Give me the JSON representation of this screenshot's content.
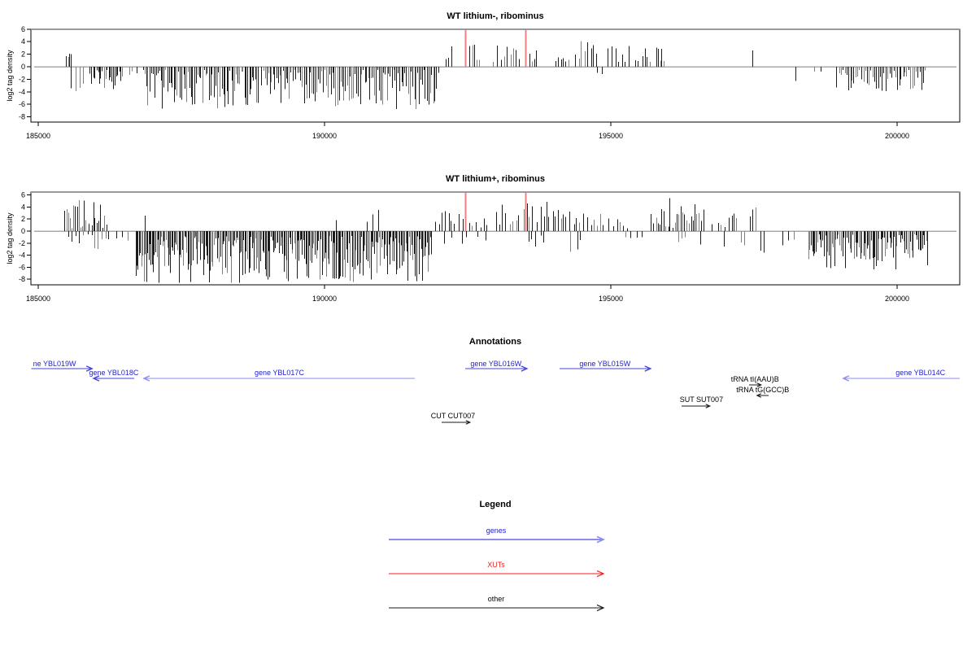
{
  "figure": {
    "background": "#ffffff"
  },
  "colors": {
    "spike_black": "#1c1c1c",
    "spike_gray": "#7f7f7f",
    "xut_red": "#f08080",
    "zero_line": "#aaaaaa",
    "top_line": "#999999",
    "box": "#000000",
    "gene_blue_label": "#2222cc",
    "gene_blue_shaft_dark": "#4646d8",
    "gene_blue_shaft_light": "#8c8cf0",
    "legend_red": "#ee2222",
    "legend_black": "#1a1a1a"
  },
  "seed": 11,
  "chart_data": [
    {
      "type": "bar",
      "id": "panel-top",
      "title": "WT lithium-, ribominus",
      "ylabel": "log2 tag density",
      "xlim": [
        184872,
        201093
      ],
      "ylim": [
        -8.8,
        6
      ],
      "x_ticks": [
        185000,
        190000,
        195000,
        200000
      ],
      "x_tick_labels": [
        "185000",
        "190000",
        "195000",
        "200000"
      ],
      "y_ticks": [
        6,
        4,
        2,
        0,
        -2,
        -4,
        -6,
        -8
      ],
      "grid": false,
      "xut_marks": [
        {
          "x": 192457,
          "h": 6
        },
        {
          "x": 193509,
          "h": 6
        }
      ],
      "regions_up": [
        {
          "x0": 185483,
          "x1": 185568,
          "n": 4,
          "hmin": 1.4,
          "hmax": 2.7
        },
        {
          "x0": 192114,
          "x1": 192228,
          "n": 3,
          "hmin": 1.2,
          "hmax": 3.7
        },
        {
          "x0": 192497,
          "x1": 192725,
          "n": 5,
          "hmin": 0.8,
          "hmax": 3.5
        },
        {
          "x0": 192923,
          "x1": 193434,
          "n": 9,
          "hmin": 0.8,
          "hmax": 3.5
        },
        {
          "x0": 193562,
          "x1": 193719,
          "n": 4,
          "hmin": 0.8,
          "hmax": 3.0
        },
        {
          "x0": 193988,
          "x1": 194287,
          "n": 6,
          "hmin": 0.8,
          "hmax": 3.0
        },
        {
          "x0": 194344,
          "x1": 194784,
          "n": 8,
          "hmin": 1.0,
          "hmax": 4.3
        },
        {
          "x0": 194912,
          "x1": 195352,
          "n": 7,
          "hmin": 0.8,
          "hmax": 3.5
        },
        {
          "x0": 195409,
          "x1": 195707,
          "n": 6,
          "hmin": 0.8,
          "hmax": 3.8
        },
        {
          "x0": 195764,
          "x1": 195948,
          "n": 5,
          "hmin": 0.8,
          "hmax": 3.4
        },
        {
          "x0": 197467,
          "x1": 197496,
          "n": 1,
          "hmin": 2.6,
          "hmax": 2.6
        }
      ],
      "regions_down": [
        {
          "x0": 185539,
          "x1": 185838,
          "n": 4,
          "hmin": 1.0,
          "hmax": 4.0
        },
        {
          "x0": 185894,
          "x1": 186477,
          "n": 22,
          "hmin": 0.5,
          "hmax": 3.6
        },
        {
          "x0": 186533,
          "x1": 186761,
          "n": 3,
          "hmin": 0.5,
          "hmax": 2.0
        },
        {
          "x0": 186817,
          "x1": 192000,
          "n": 185,
          "hmin": 0.5,
          "hmax": 6.8
        },
        {
          "x0": 194741,
          "x1": 194897,
          "n": 2,
          "hmin": 0.5,
          "hmax": 1.3
        },
        {
          "x0": 198192,
          "x1": 198234,
          "n": 1,
          "hmin": 2.3,
          "hmax": 2.3
        },
        {
          "x0": 198532,
          "x1": 198731,
          "n": 2,
          "hmin": 0.6,
          "hmax": 1.1
        },
        {
          "x0": 198930,
          "x1": 200506,
          "n": 48,
          "hmin": 0.5,
          "hmax": 4.6
        }
      ]
    },
    {
      "type": "bar",
      "id": "panel-bottom",
      "title": "WT lithium+, ribominus",
      "ylabel": "log2 tag density",
      "xlim": [
        184872,
        201093
      ],
      "ylim": [
        -8.9,
        6.5
      ],
      "x_ticks": [
        185000,
        190000,
        195000,
        200000
      ],
      "x_tick_labels": [
        "185000",
        "190000",
        "195000",
        "200000"
      ],
      "y_ticks": [
        6,
        4,
        2,
        0,
        -2,
        -4,
        -6,
        -8
      ],
      "grid": false,
      "xut_marks": [
        {
          "x": 192457,
          "h": 6.4
        },
        {
          "x": 193509,
          "h": 6.4
        }
      ],
      "regions_up": [
        {
          "x0": 185440,
          "x1": 186193,
          "n": 24,
          "hmin": 0.5,
          "hmax": 5.6
        },
        {
          "x0": 186832,
          "x1": 186874,
          "n": 1,
          "hmin": 2.6,
          "hmax": 2.6
        },
        {
          "x0": 190170,
          "x1": 190200,
          "n": 1,
          "hmin": 1.8,
          "hmax": 1.8
        },
        {
          "x0": 190722,
          "x1": 190978,
          "n": 3,
          "hmin": 1.5,
          "hmax": 3.6
        },
        {
          "x0": 191901,
          "x1": 192299,
          "n": 7,
          "hmin": 1.0,
          "hmax": 3.6
        },
        {
          "x0": 192327,
          "x1": 192866,
          "n": 9,
          "hmin": 0.5,
          "hmax": 3.0
        },
        {
          "x0": 192966,
          "x1": 193719,
          "n": 13,
          "hmin": 0.8,
          "hmax": 4.6
        },
        {
          "x0": 193747,
          "x1": 194287,
          "n": 11,
          "hmin": 0.8,
          "hmax": 5.6
        },
        {
          "x0": 194315,
          "x1": 194968,
          "n": 11,
          "hmin": 0.8,
          "hmax": 3.4
        },
        {
          "x0": 195011,
          "x1": 195309,
          "n": 5,
          "hmin": 0.5,
          "hmax": 2.0
        },
        {
          "x0": 195692,
          "x1": 196630,
          "n": 26,
          "hmin": 0.5,
          "hmax": 5.6
        },
        {
          "x0": 196743,
          "x1": 197027,
          "n": 4,
          "hmin": 0.6,
          "hmax": 1.5
        },
        {
          "x0": 197041,
          "x1": 197211,
          "n": 4,
          "hmin": 1.8,
          "hmax": 3.2
        },
        {
          "x0": 197396,
          "x1": 197538,
          "n": 3,
          "hmin": 1.8,
          "hmax": 4.2
        }
      ],
      "regions_down": [
        {
          "x0": 185497,
          "x1": 186264,
          "n": 12,
          "hmin": 0.5,
          "hmax": 3.4
        },
        {
          "x0": 186320,
          "x1": 186618,
          "n": 3,
          "hmin": 1.0,
          "hmax": 4.2
        },
        {
          "x0": 186689,
          "x1": 191873,
          "n": 255,
          "hmin": 0.8,
          "hmax": 8.6
        },
        {
          "x0": 192000,
          "x1": 192866,
          "n": 6,
          "hmin": 0.5,
          "hmax": 2.2
        },
        {
          "x0": 193534,
          "x1": 193861,
          "n": 5,
          "hmin": 0.5,
          "hmax": 2.8
        },
        {
          "x0": 194273,
          "x1": 194500,
          "n": 3,
          "hmin": 1.0,
          "hmax": 3.6
        },
        {
          "x0": 195238,
          "x1": 195593,
          "n": 4,
          "hmin": 0.5,
          "hmax": 1.6
        },
        {
          "x0": 196147,
          "x1": 196346,
          "n": 3,
          "hmin": 1.0,
          "hmax": 2.8
        },
        {
          "x0": 196473,
          "x1": 196587,
          "n": 1,
          "hmin": 2.2,
          "hmax": 2.2
        },
        {
          "x0": 196942,
          "x1": 197027,
          "n": 1,
          "hmin": 2.6,
          "hmax": 2.6
        },
        {
          "x0": 197226,
          "x1": 197354,
          "n": 2,
          "hmin": 1.4,
          "hmax": 3.3
        },
        {
          "x0": 197581,
          "x1": 197723,
          "n": 2,
          "hmin": 1.8,
          "hmax": 3.6
        },
        {
          "x0": 197936,
          "x1": 198206,
          "n": 3,
          "hmin": 0.8,
          "hmax": 2.6
        },
        {
          "x0": 198433,
          "x1": 200535,
          "n": 92,
          "hmin": 0.5,
          "hmax": 6.6
        }
      ]
    }
  ],
  "annotations": {
    "title": "Annotations",
    "items": [
      {
        "label": "ne YBL019W",
        "g0": 184880,
        "g1": 185940,
        "dir": "right",
        "color": "blue",
        "row": 0,
        "label_anchor": "start",
        "label_g": 184910
      },
      {
        "label": "gene YBL018C",
        "g0": 185966,
        "g1": 186675,
        "dir": "left",
        "color": "blue",
        "row": 1
      },
      {
        "label": "gene YBL017C",
        "g0": 186846,
        "g1": 191574,
        "dir": "left",
        "color": "blue",
        "row": 1
      },
      {
        "label": "gene YBL016W",
        "g0": 192455,
        "g1": 193534,
        "dir": "right",
        "color": "blue",
        "row": 0
      },
      {
        "label": "gene YBL015W",
        "g0": 194102,
        "g1": 195692,
        "dir": "right",
        "color": "blue",
        "row": 0
      },
      {
        "label": "gene YBL014C",
        "g0": 199060,
        "g1": 201093,
        "dir": "left",
        "color": "blue",
        "row": 1,
        "label_g": 200407
      },
      {
        "label": "tRNA tI(AAU)B",
        "g0": 197411,
        "g1": 197624,
        "dir": "right",
        "color": "black",
        "row": 2
      },
      {
        "label": "tRNA tG(GCC)B",
        "g0": 197553,
        "g1": 197752,
        "dir": "left",
        "color": "black",
        "row": 3
      },
      {
        "label": "SUT SUT007",
        "g0": 196232,
        "g1": 196729,
        "dir": "right",
        "color": "black",
        "row": 4,
        "label_anchor": "start",
        "label_g": 196203
      },
      {
        "label": "CUT CUT007",
        "g0": 192043,
        "g1": 192540,
        "dir": "right",
        "color": "black",
        "row": 5,
        "label_anchor": "start",
        "label_g": 191857
      }
    ]
  },
  "legend": {
    "title": "Legend",
    "entries": [
      {
        "label": "genes",
        "color_key": "blue"
      },
      {
        "label": "XUTs",
        "color_key": "red"
      },
      {
        "label": "other",
        "color_key": "black"
      }
    ]
  }
}
